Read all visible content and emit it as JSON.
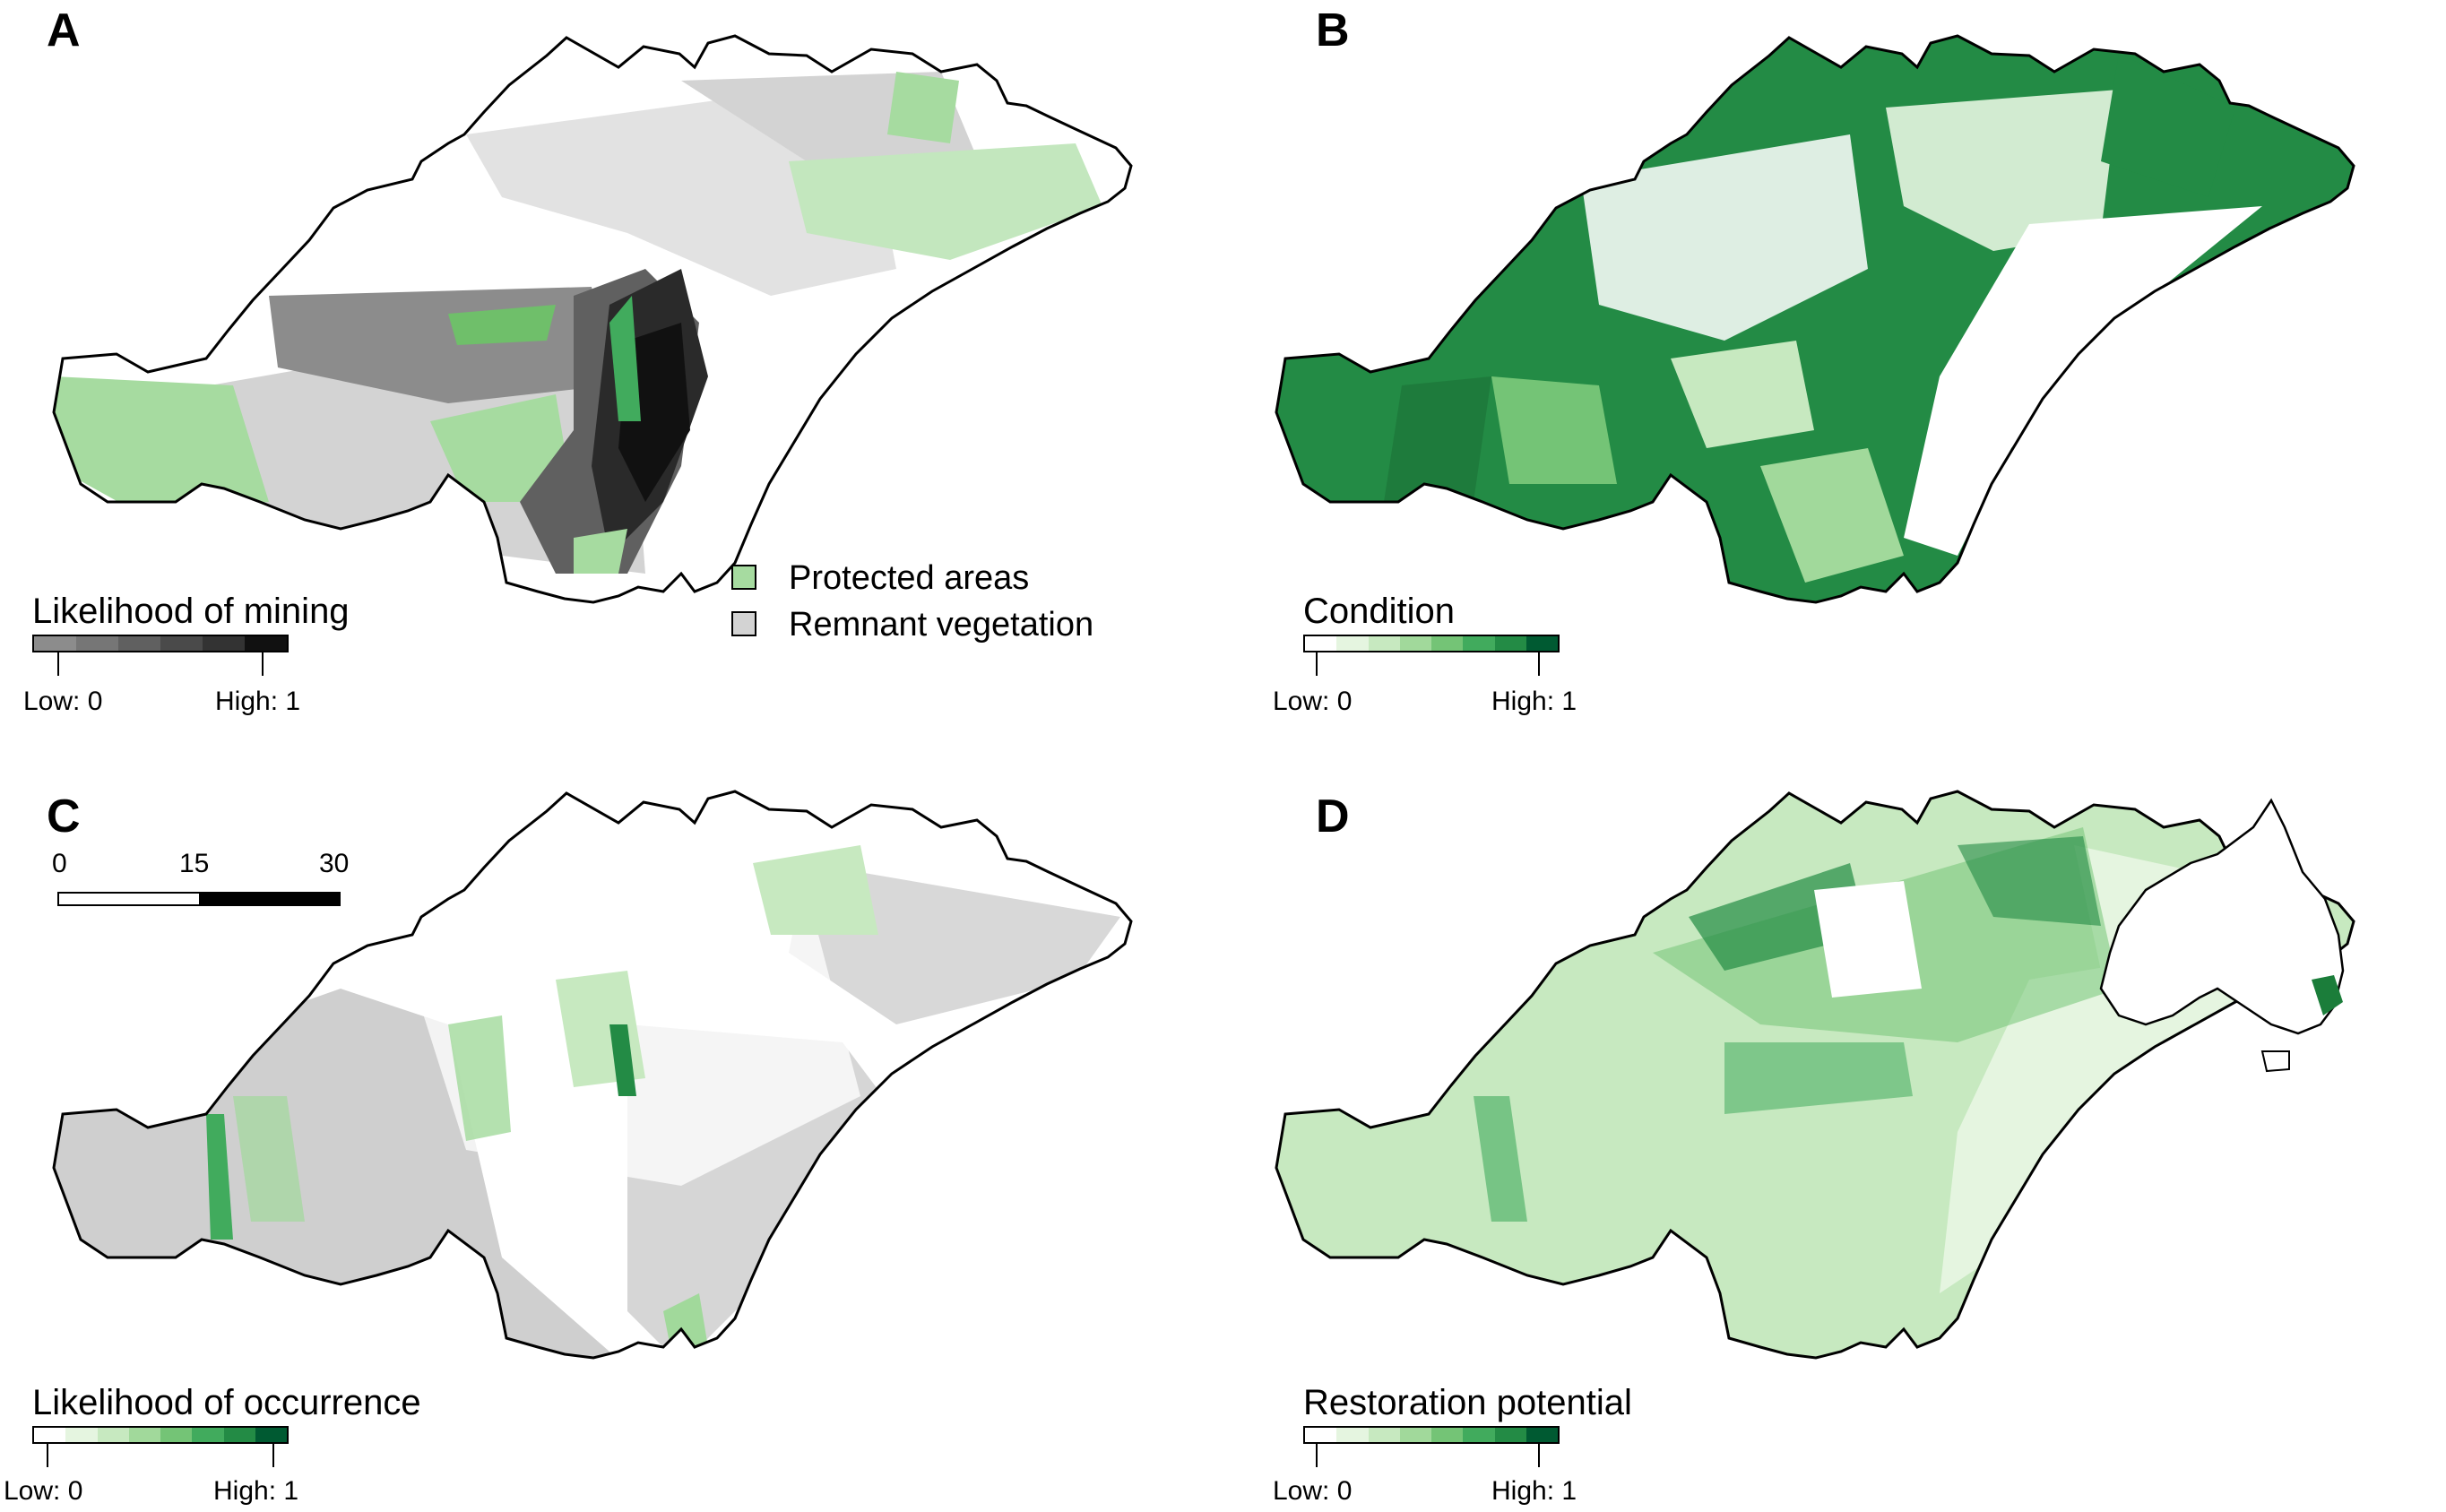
{
  "panels": [
    {
      "label": "A",
      "legend_title": "Likelihood of mining",
      "low": "Low: 0",
      "high": "High: 1",
      "ramp_colors": [
        "#8c8c8c",
        "#767676",
        "#606060",
        "#4a4a4a",
        "#333333",
        "#111111"
      ],
      "categories": [
        {
          "label": "Protected areas",
          "color": "#a6dba0"
        },
        {
          "label": "Remnant vegetation",
          "color": "#d3d3d3"
        }
      ]
    },
    {
      "label": "B",
      "legend_title": "Condition",
      "low": "Low: 0",
      "high": "High: 1",
      "ramp_colors": [
        "#ffffff",
        "#e5f5e0",
        "#c7e9c0",
        "#a1d99b",
        "#74c476",
        "#41ab5d",
        "#238b45",
        "#005a32"
      ]
    },
    {
      "label": "C",
      "legend_title": "Likelihood of occurrence",
      "low": "Low: 0",
      "high": "High: 1",
      "ramp_colors": [
        "#ffffff",
        "#e5f5e0",
        "#c7e9c0",
        "#a1d99b",
        "#74c476",
        "#41ab5d",
        "#238b45",
        "#005a32"
      ],
      "scale_bar": {
        "ticks": [
          "0",
          "15",
          "30"
        ]
      }
    },
    {
      "label": "D",
      "legend_title": "Restoration potential",
      "low": "Low: 0",
      "high": "High: 1",
      "ramp_colors": [
        "#ffffff",
        "#e5f5e0",
        "#c7e9c0",
        "#a1d99b",
        "#74c476",
        "#41ab5d",
        "#238b45",
        "#005a32"
      ],
      "inset": "australia-locator"
    }
  ]
}
